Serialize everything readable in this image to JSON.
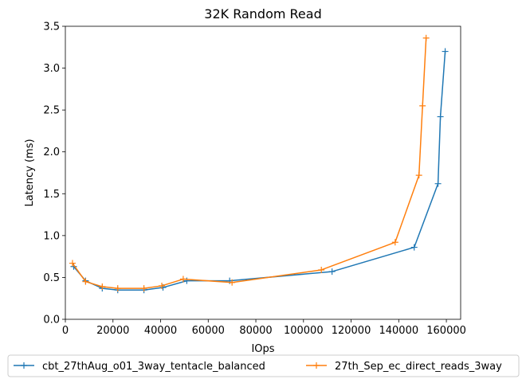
{
  "chart_data": {
    "type": "line",
    "title": "32K  Random Read",
    "xlabel": "IOps",
    "ylabel": "Latency (ms)",
    "xlim": [
      0,
      166000
    ],
    "ylim": [
      0,
      3.5
    ],
    "xticks": [
      0,
      20000,
      40000,
      60000,
      80000,
      100000,
      120000,
      140000,
      160000
    ],
    "xtick_labels": [
      "0",
      "20000",
      "40000",
      "60000",
      "80000",
      "100000",
      "120000",
      "140000",
      "160000"
    ],
    "yticks": [
      0,
      0.5,
      1.0,
      1.5,
      2.0,
      2.5,
      3.0,
      3.5
    ],
    "ytick_labels": [
      "0.0",
      "0.5",
      "1.0",
      "1.5",
      "2.0",
      "2.5",
      "3.0",
      "3.5"
    ],
    "grid": false,
    "legend_position": "below",
    "series": [
      {
        "name": "cbt_27thAug_o01_3way_tentacle_balanced",
        "color": "#1f77b4",
        "marker": "plus",
        "x": [
          3500,
          8500,
          15500,
          22000,
          33000,
          41000,
          51000,
          69000,
          112000,
          146500,
          156500,
          157500,
          159500
        ],
        "y": [
          0.63,
          0.46,
          0.37,
          0.35,
          0.35,
          0.38,
          0.46,
          0.46,
          0.57,
          0.86,
          1.62,
          2.42,
          3.2
        ]
      },
      {
        "name": "27th_Sep_ec_direct_reads_3way",
        "color": "#ff7f0e",
        "marker": "plus",
        "x": [
          3000,
          8500,
          15500,
          22000,
          33000,
          40500,
          49500,
          70000,
          107500,
          138500,
          148500,
          150000,
          151500
        ],
        "y": [
          0.67,
          0.45,
          0.39,
          0.37,
          0.37,
          0.4,
          0.48,
          0.44,
          0.59,
          0.92,
          1.72,
          2.55,
          3.36
        ]
      }
    ]
  }
}
